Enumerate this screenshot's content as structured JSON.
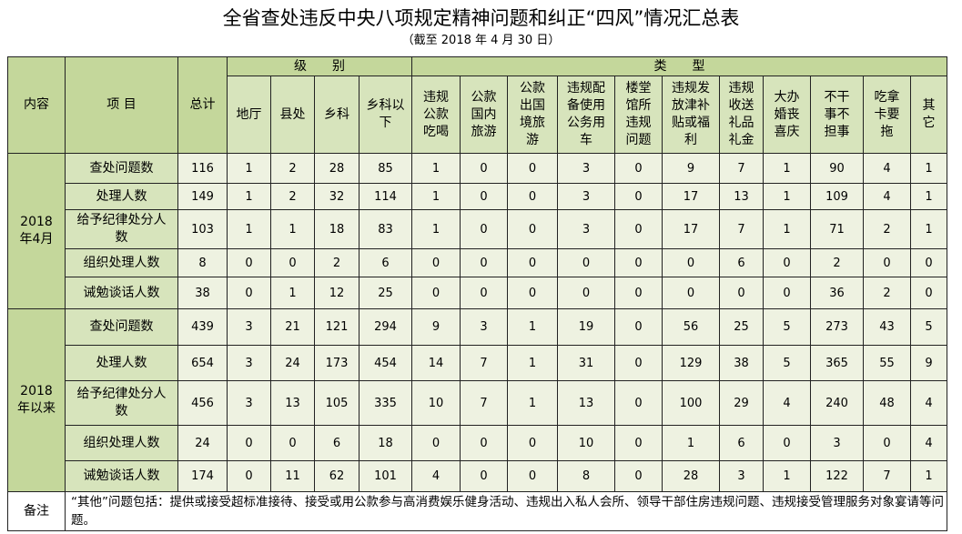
{
  "title": "全省查处违反中央八项规定精神问题和纠正“四风”情况汇总表",
  "subtitle": "（截至 2018 年 4 月 30 日）",
  "header": {
    "content": "内容",
    "item": "项 目",
    "total": "总计",
    "level_group": "级　　别",
    "type_group": "类　　型",
    "levels": [
      "地厅",
      "县处",
      "乡科",
      "乡科以下"
    ],
    "types": [
      "违规公款吃喝",
      "公款国内旅游",
      "公款出国境旅游",
      "违规配备使用公务用车",
      "楼堂馆所违规问题",
      "违规发放津补贴或福利",
      "违规收送礼品礼金",
      "大办婚丧喜庆",
      "不干事不担事",
      "吃拿卡要拖",
      "其它"
    ]
  },
  "groups": [
    {
      "label": "2018年4月",
      "rows": [
        {
          "item": "查处问题数",
          "values": [
            "116",
            "1",
            "2",
            "28",
            "85",
            "1",
            "0",
            "0",
            "3",
            "0",
            "9",
            "7",
            "1",
            "90",
            "4",
            "1"
          ]
        },
        {
          "item": "处理人数",
          "values": [
            "149",
            "1",
            "2",
            "32",
            "114",
            "1",
            "0",
            "0",
            "3",
            "0",
            "17",
            "13",
            "1",
            "109",
            "4",
            "1"
          ]
        },
        {
          "item": "给予纪律处分人数",
          "values": [
            "103",
            "1",
            "1",
            "18",
            "83",
            "1",
            "0",
            "0",
            "3",
            "0",
            "17",
            "7",
            "1",
            "71",
            "2",
            "1"
          ]
        },
        {
          "item": "组织处理人数",
          "values": [
            "8",
            "0",
            "0",
            "2",
            "6",
            "0",
            "0",
            "0",
            "0",
            "0",
            "0",
            "6",
            "0",
            "2",
            "0",
            "0"
          ]
        },
        {
          "item": "诫勉谈话人数",
          "values": [
            "38",
            "0",
            "1",
            "12",
            "25",
            "0",
            "0",
            "0",
            "0",
            "0",
            "0",
            "0",
            "0",
            "36",
            "2",
            "0"
          ]
        }
      ]
    },
    {
      "label": "2018年以来",
      "rows": [
        {
          "item": "查处问题数",
          "values": [
            "439",
            "3",
            "21",
            "121",
            "294",
            "9",
            "3",
            "1",
            "19",
            "0",
            "56",
            "25",
            "5",
            "273",
            "43",
            "5"
          ]
        },
        {
          "item": "处理人数",
          "values": [
            "654",
            "3",
            "24",
            "173",
            "454",
            "14",
            "7",
            "1",
            "31",
            "0",
            "129",
            "38",
            "5",
            "365",
            "55",
            "9"
          ]
        },
        {
          "item": "给予纪律处分人数",
          "values": [
            "456",
            "3",
            "13",
            "105",
            "335",
            "10",
            "7",
            "1",
            "13",
            "0",
            "100",
            "29",
            "4",
            "240",
            "48",
            "4"
          ]
        },
        {
          "item": "组织处理人数",
          "values": [
            "24",
            "0",
            "0",
            "6",
            "18",
            "0",
            "0",
            "0",
            "10",
            "0",
            "1",
            "6",
            "0",
            "3",
            "0",
            "4"
          ]
        },
        {
          "item": "诫勉谈话人数",
          "values": [
            "174",
            "0",
            "11",
            "62",
            "101",
            "4",
            "0",
            "0",
            "8",
            "0",
            "28",
            "3",
            "1",
            "122",
            "7",
            "1"
          ]
        }
      ]
    }
  ],
  "note": {
    "label": "备注",
    "text": "“其他”问题包括：提供或接受超标准接待、接受或用公款参与高消费娱乐健身活动、违规出入私人会所、领导干部住房违规问题、违规接受管理服务对象宴请等问题。"
  }
}
